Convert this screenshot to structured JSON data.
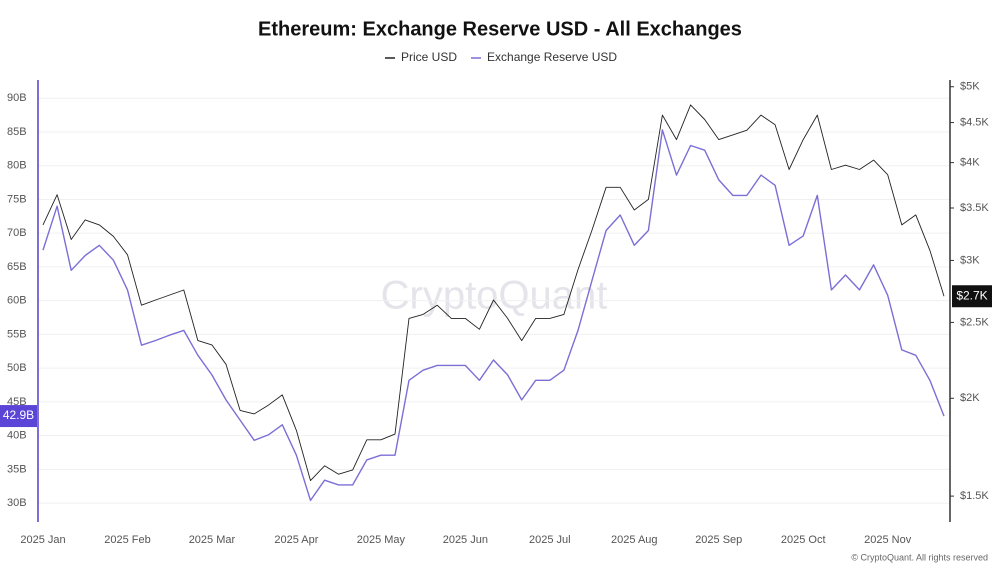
{
  "chart_data": {
    "type": "line",
    "title": "Ethereum: Exchange Reserve USD - All Exchanges",
    "watermark": "CryptoQuant",
    "copyright": "© CryptoQuant. All rights reserved",
    "categories": [
      "2025 Jan",
      null,
      null,
      null,
      null,
      null,
      "2025 Feb",
      null,
      null,
      null,
      null,
      null,
      "2025 Mar",
      null,
      null,
      null,
      null,
      null,
      "2025 Apr",
      null,
      null,
      null,
      null,
      null,
      "2025 May",
      null,
      null,
      null,
      null,
      null,
      "2025 Jun",
      null,
      null,
      null,
      null,
      null,
      "2025 Jul",
      null,
      null,
      null,
      null,
      null,
      "2025 Aug",
      null,
      null,
      null,
      null,
      null,
      "2025 Sep",
      null,
      null,
      null,
      null,
      null,
      "2025 Oct",
      null,
      null,
      null,
      null,
      null,
      "2025 Nov",
      null,
      null,
      null,
      null
    ],
    "series": [
      {
        "name": "Price USD",
        "color": "#222222",
        "axis": "y2",
        "last_label": "$2.7K",
        "values": [
          3330,
          3640,
          3190,
          3380,
          3330,
          3220,
          3050,
          2630,
          2670,
          2710,
          2750,
          2370,
          2340,
          2210,
          1930,
          1910,
          1960,
          2020,
          1820,
          1570,
          1640,
          1600,
          1620,
          1770,
          1770,
          1800,
          2530,
          2560,
          2630,
          2530,
          2530,
          2450,
          2670,
          2530,
          2370,
          2530,
          2530,
          2560,
          2920,
          3280,
          3720,
          3720,
          3480,
          3590,
          4600,
          4280,
          4740,
          4540,
          4280,
          4340,
          4400,
          4600,
          4470,
          3920,
          4280,
          4600,
          3920,
          3970,
          3920,
          4030,
          3860,
          3330,
          3430,
          3090,
          2700
        ]
      },
      {
        "name": "Exchange Reserve USD",
        "color": "#7b6fd6",
        "last_label": "42.9B",
        "values": [
          67.5,
          74,
          64.5,
          66.7,
          68.2,
          66,
          61.6,
          53.4,
          54.1,
          54.9,
          55.6,
          51.9,
          49,
          45.3,
          42.3,
          39.3,
          40.1,
          41.6,
          37.1,
          30.4,
          33.4,
          32.7,
          32.7,
          36.4,
          37.1,
          37.1,
          48.2,
          49.7,
          50.4,
          50.4,
          50.4,
          48.2,
          51.2,
          49,
          45.3,
          48.2,
          48.2,
          49.7,
          55.6,
          63,
          70.4,
          72.7,
          68.2,
          70.4,
          85.3,
          78.6,
          83,
          82.3,
          77.9,
          75.6,
          75.6,
          78.6,
          77.1,
          68.2,
          69.6,
          75.6,
          61.6,
          63.8,
          61.6,
          65.3,
          60.8,
          52.7,
          51.9,
          48.2,
          42.9
        ]
      }
    ],
    "ylim": [
      27.2,
      92.7
    ],
    "yticks": [
      {
        "value": 30,
        "label": "30B"
      },
      {
        "value": 35,
        "label": "35B"
      },
      {
        "value": 40,
        "label": "40B"
      },
      {
        "value": 45,
        "label": "45B"
      },
      {
        "value": 50,
        "label": "50B"
      },
      {
        "value": 55,
        "label": "55B"
      },
      {
        "value": 60,
        "label": "60B"
      },
      {
        "value": 65,
        "label": "65B"
      },
      {
        "value": 70,
        "label": "70B"
      },
      {
        "value": 75,
        "label": "75B"
      },
      {
        "value": 80,
        "label": "80B"
      },
      {
        "value": 85,
        "label": "85B"
      },
      {
        "value": 90,
        "label": "90B"
      }
    ],
    "y2lim": [
      1390,
      5100
    ],
    "y2log": true,
    "y2ticks": [
      {
        "value": 1500,
        "label": "$1.5K"
      },
      {
        "value": 2000,
        "label": "$2K"
      },
      {
        "value": 2500,
        "label": "$2.5K"
      },
      {
        "value": 3000,
        "label": "$3K"
      },
      {
        "value": 3500,
        "label": "$3.5K"
      },
      {
        "value": 4000,
        "label": "$4K"
      },
      {
        "value": 4500,
        "label": "$4.5K"
      },
      {
        "value": 5000,
        "label": "$5K"
      }
    ],
    "grid": true
  }
}
